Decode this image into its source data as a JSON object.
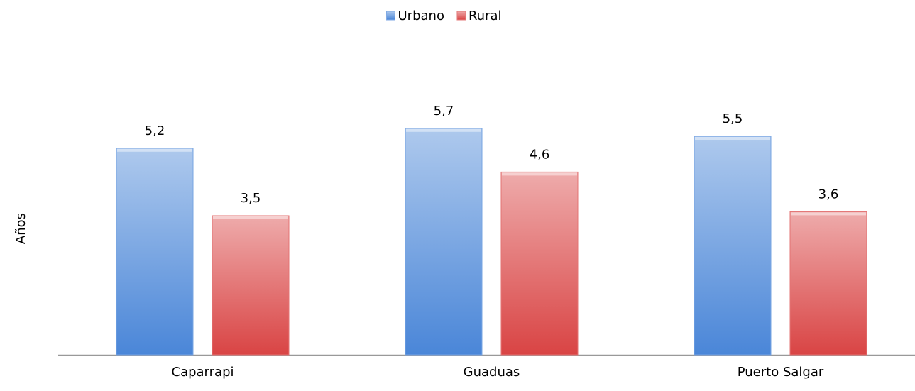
{
  "chart_data": {
    "type": "bar",
    "y_label": "Años",
    "categories": [
      "Caparrapi",
      "Guaduas",
      "Puerto Salgar"
    ],
    "series": [
      {
        "name": "Urbano",
        "color": "#4a86d8",
        "values": [
          5.2,
          5.7,
          5.5
        ],
        "value_labels": [
          "5,2",
          "5,7",
          "5,5"
        ]
      },
      {
        "name": "Rural",
        "color": "#d94444",
        "values": [
          3.5,
          4.6,
          3.6
        ],
        "value_labels": [
          "3,5",
          "4,6",
          "3,6"
        ]
      }
    ],
    "ylim": [
      0,
      7
    ],
    "legend": "top"
  }
}
